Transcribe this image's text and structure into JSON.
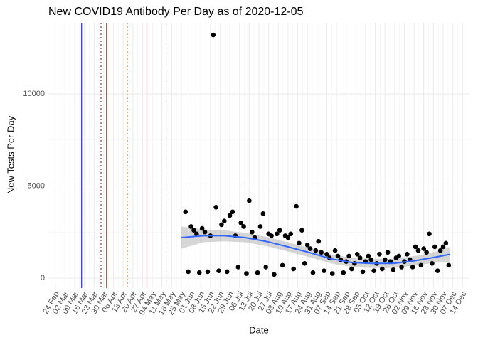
{
  "chart_data": {
    "type": "scatter",
    "title": "New COVID19 Antibody Per Day as of 2020-12-05",
    "xlabel": "Date",
    "ylabel": "New Tests Per Day",
    "xlim": [
      "19 Feb",
      "19 Dec"
    ],
    "ylim": [
      -540,
      13860
    ],
    "xticks": [
      "24 Feb",
      "02 Mar",
      "09 Mar",
      "16 Mar",
      "23 Mar",
      "30 Mar",
      "06 Apr",
      "13 Apr",
      "20 Apr",
      "27 Apr",
      "04 May",
      "11 May",
      "18 May",
      "25 May",
      "01 Jun",
      "08 Jun",
      "15 Jun",
      "22 Jun",
      "29 Jun",
      "06 Jul",
      "13 Jul",
      "20 Jul",
      "27 Jul",
      "03 Aug",
      "10 Aug",
      "17 Aug",
      "24 Aug",
      "31 Aug",
      "07 Sep",
      "14 Sep",
      "21 Sep",
      "28 Sep",
      "05 Oct",
      "12 Oct",
      "19 Oct",
      "26 Oct",
      "02 Nov",
      "09 Nov",
      "16 Nov",
      "23 Nov",
      "30 Nov",
      "07 Dec",
      "14 Dec"
    ],
    "yticks": [
      0,
      5000,
      10000
    ],
    "grid": true,
    "color": "#000000",
    "x": [
      "28 May",
      "30 May",
      "01 Jun",
      "03 Jun",
      "05 Jun",
      "07 Jun",
      "09 Jun",
      "11 Jun",
      "13 Jun",
      "15 Jun",
      "17 Jun",
      "19 Jun",
      "21 Jun",
      "23 Jun",
      "25 Jun",
      "27 Jun",
      "29 Jun",
      "01 Jul",
      "03 Jul",
      "05 Jul",
      "07 Jul",
      "09 Jul",
      "11 Jul",
      "13 Jul",
      "15 Jul",
      "17 Jul",
      "19 Jul",
      "21 Jul",
      "23 Jul",
      "25 Jul",
      "27 Jul",
      "29 Jul",
      "31 Jul",
      "02 Aug",
      "04 Aug",
      "06 Aug",
      "08 Aug",
      "10 Aug",
      "12 Aug",
      "14 Aug",
      "16 Aug",
      "18 Aug",
      "20 Aug",
      "22 Aug",
      "24 Aug",
      "26 Aug",
      "28 Aug",
      "30 Aug",
      "01 Sep",
      "03 Sep",
      "05 Sep",
      "07 Sep",
      "09 Sep",
      "11 Sep",
      "13 Sep",
      "15 Sep",
      "17 Sep",
      "19 Sep",
      "21 Sep",
      "23 Sep",
      "25 Sep",
      "27 Sep",
      "29 Sep",
      "01 Oct",
      "03 Oct",
      "05 Oct",
      "07 Oct",
      "09 Oct",
      "11 Oct",
      "13 Oct",
      "15 Oct",
      "17 Oct",
      "19 Oct",
      "21 Oct",
      "23 Oct",
      "25 Oct",
      "27 Oct",
      "29 Oct",
      "31 Oct",
      "02 Nov",
      "04 Nov",
      "06 Nov",
      "08 Nov",
      "10 Nov",
      "12 Nov",
      "14 Nov",
      "16 Nov",
      "18 Nov",
      "20 Nov",
      "22 Nov",
      "24 Nov",
      "26 Nov",
      "28 Nov",
      "30 Nov",
      "02 Dec",
      "04 Dec"
    ],
    "values": [
      3600,
      350,
      2800,
      2600,
      2400,
      300,
      2700,
      2500,
      350,
      2300,
      13200,
      3850,
      400,
      2900,
      3100,
      350,
      3400,
      3600,
      2300,
      600,
      3000,
      2800,
      250,
      4200,
      2500,
      2200,
      300,
      2800,
      3500,
      600,
      2400,
      2300,
      200,
      2400,
      2600,
      700,
      2300,
      2200,
      2400,
      500,
      3900,
      1900,
      2600,
      800,
      1800,
      1600,
      300,
      1500,
      2000,
      1400,
      400,
      1300,
      1100,
      250,
      1500,
      1200,
      1000,
      300,
      900,
      1200,
      500,
      800,
      1300,
      1100,
      350,
      900,
      1200,
      1000,
      400,
      800,
      1300,
      500,
      1000,
      1400,
      900,
      450,
      1100,
      1200,
      600,
      900,
      1300,
      1000,
      600,
      1700,
      1500,
      700,
      1600,
      1400,
      2400,
      800,
      1700,
      400,
      1500,
      1700,
      1900,
      700
    ],
    "smooth": {
      "color": "#3366ff",
      "x": [
        "25 May",
        "10 Jun",
        "25 Jun",
        "10 Jul",
        "25 Jul",
        "10 Aug",
        "25 Aug",
        "10 Sep",
        "25 Sep",
        "10 Oct",
        "25 Oct",
        "10 Nov",
        "25 Nov",
        "05 Dec"
      ],
      "values": [
        2200,
        2300,
        2300,
        2200,
        2000,
        1700,
        1400,
        1050,
        850,
        800,
        800,
        950,
        1150,
        1300
      ],
      "lower": [
        1600,
        1950,
        2000,
        1950,
        1750,
        1450,
        1150,
        800,
        600,
        550,
        550,
        700,
        850,
        900
      ],
      "upper": [
        2800,
        2650,
        2600,
        2450,
        2250,
        1950,
        1650,
        1300,
        1100,
        1050,
        1050,
        1200,
        1450,
        1700
      ]
    },
    "vlines": [
      {
        "x": "14 Mar",
        "color": "#0000ff",
        "dashed": false
      },
      {
        "x": "28 Mar",
        "color": "#8b0000",
        "dashed": true
      },
      {
        "x": "01 Apr",
        "color": "#cc0000",
        "dashed": false
      },
      {
        "x": "16 Apr",
        "color": "#cc6600",
        "dashed": true
      },
      {
        "x": "30 Apr",
        "color": "#ffb6c1",
        "dashed": false
      },
      {
        "x": "14 May",
        "color": "#cccccc",
        "dashed": true
      }
    ]
  }
}
